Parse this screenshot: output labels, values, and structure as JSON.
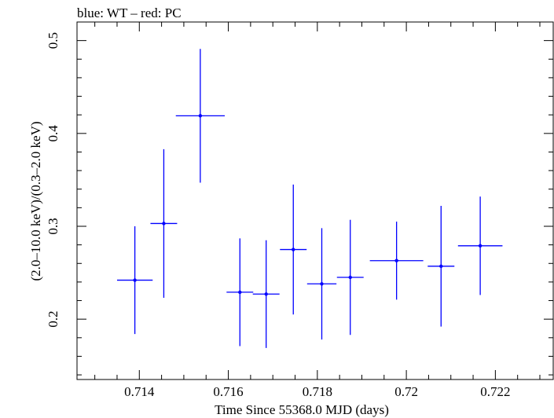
{
  "chart_data": {
    "type": "scatter",
    "title": "blue: WT – red: PC",
    "xlabel": "Time Since 55368.0 MJD (days)",
    "ylabel": "(2.0–10.0 keV)/(0.3–2.0 keV)",
    "xlim": [
      0.7126,
      0.7233
    ],
    "ylim": [
      0.135,
      0.52
    ],
    "xticks": [
      0.714,
      0.716,
      0.718,
      0.72,
      0.722
    ],
    "xtick_labels": [
      "0.714",
      "0.716",
      "0.718",
      "0.72",
      "0.722"
    ],
    "yticks": [
      0.2,
      0.3,
      0.4,
      0.5
    ],
    "ytick_labels": [
      "0.2",
      "0.3",
      "0.4",
      "0.5"
    ],
    "grid": false,
    "series": [
      {
        "color": "#0000ff",
        "points": [
          {
            "x": 0.7139,
            "xerr": 0.0004,
            "y": 0.242,
            "yerr": 0.058
          },
          {
            "x": 0.71455,
            "xerr": 0.0003,
            "y": 0.303,
            "yerr": 0.08
          },
          {
            "x": 0.71537,
            "xerr": 0.00055,
            "y": 0.419,
            "yerr": 0.072
          },
          {
            "x": 0.71626,
            "xerr": 0.0003,
            "y": 0.229,
            "yerr": 0.058
          },
          {
            "x": 0.71685,
            "xerr": 0.0003,
            "y": 0.227,
            "yerr": 0.058
          },
          {
            "x": 0.71746,
            "xerr": 0.0003,
            "y": 0.275,
            "yerr": 0.07
          },
          {
            "x": 0.7181,
            "xerr": 0.00033,
            "y": 0.238,
            "yerr": 0.06
          },
          {
            "x": 0.71874,
            "xerr": 0.0003,
            "y": 0.245,
            "yerr": 0.062
          },
          {
            "x": 0.71978,
            "xerr": 0.0006,
            "y": 0.263,
            "yerr": 0.042
          },
          {
            "x": 0.72078,
            "xerr": 0.0003,
            "y": 0.257,
            "yerr": 0.065
          },
          {
            "x": 0.72166,
            "xerr": 0.0005,
            "y": 0.279,
            "yerr": 0.053
          }
        ]
      }
    ]
  }
}
